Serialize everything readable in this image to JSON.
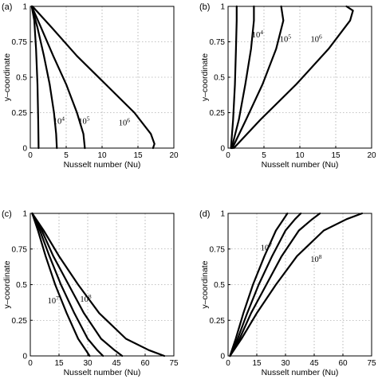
{
  "colors": {
    "curve": "#000000",
    "grid": "#888888",
    "background": "#ffffff"
  },
  "chart_data": [
    {
      "type": "line",
      "panel_label": "(a)",
      "xlabel": "Nusselt number (Nu)",
      "ylabel": "y–coordinate",
      "xlim": [
        0,
        20
      ],
      "ylim": [
        0,
        1
      ],
      "xticks": [
        "0",
        "5",
        "10",
        "15",
        "20"
      ],
      "yticks": [
        "0",
        "0.25",
        "0.5",
        "0.75",
        "1"
      ],
      "grid": true,
      "annotations": [
        {
          "base": "10",
          "exp": "4",
          "x": 3.2,
          "y": 0.17
        },
        {
          "base": "10",
          "exp": "5",
          "x": 6.7,
          "y": 0.17
        },
        {
          "base": "10",
          "exp": "6",
          "x": 12.3,
          "y": 0.16
        }
      ],
      "series": [
        {
          "x": [
            0.2,
            0.55,
            0.8,
            1.0,
            1.1,
            1.15
          ],
          "y": [
            1.0,
            0.9,
            0.7,
            0.45,
            0.2,
            0.0
          ]
        },
        {
          "x": [
            0.2,
            1.0,
            1.9,
            2.7,
            3.3,
            3.6,
            3.7
          ],
          "y": [
            1.0,
            0.85,
            0.65,
            0.45,
            0.25,
            0.1,
            0.0
          ]
        },
        {
          "x": [
            0.2,
            1.5,
            3.2,
            5.0,
            6.5,
            7.4,
            7.6
          ],
          "y": [
            1.0,
            0.85,
            0.65,
            0.45,
            0.25,
            0.1,
            0.0
          ]
        },
        {
          "x": [
            0.3,
            3.0,
            6.5,
            10.5,
            14.5,
            16.8,
            17.3,
            17.1
          ],
          "y": [
            1.0,
            0.85,
            0.65,
            0.45,
            0.25,
            0.1,
            0.03,
            0.0
          ]
        }
      ]
    },
    {
      "type": "line",
      "panel_label": "(b)",
      "xlabel": "Nusselt number (Nu)",
      "ylabel": "y–coordinate",
      "xlim": [
        0,
        20
      ],
      "ylim": [
        0,
        1
      ],
      "xticks": [
        "0",
        "5",
        "10",
        "15",
        "20"
      ],
      "yticks": [
        "0",
        "0.25",
        "0.5",
        "0.75",
        "1"
      ],
      "grid": true,
      "annotations": [
        {
          "base": "10",
          "exp": "4",
          "x": 3.3,
          "y": 0.78
        },
        {
          "base": "10",
          "exp": "5",
          "x": 7.2,
          "y": 0.75
        },
        {
          "base": "10",
          "exp": "6",
          "x": 11.5,
          "y": 0.75
        }
      ],
      "series": [
        {
          "x": [
            0.4,
            0.7,
            0.95,
            1.1,
            1.2,
            1.2
          ],
          "y": [
            0.0,
            0.2,
            0.45,
            0.7,
            0.9,
            1.0
          ]
        },
        {
          "x": [
            0.5,
            1.5,
            2.4,
            3.2,
            3.6,
            3.6
          ],
          "y": [
            0.0,
            0.2,
            0.45,
            0.7,
            0.9,
            1.0
          ]
        },
        {
          "x": [
            0.6,
            2.5,
            4.8,
            6.7,
            7.7,
            7.4
          ],
          "y": [
            0.0,
            0.2,
            0.45,
            0.7,
            0.9,
            1.0
          ]
        },
        {
          "x": [
            0.8,
            4.5,
            9.5,
            14.0,
            17.0,
            17.4,
            16.5
          ],
          "y": [
            0.0,
            0.2,
            0.45,
            0.7,
            0.9,
            0.97,
            1.0
          ]
        }
      ]
    },
    {
      "type": "line",
      "panel_label": "(c)",
      "xlabel": "Nusselt number (Nu)",
      "ylabel": "y–coordinate",
      "xlim": [
        0,
        75
      ],
      "ylim": [
        0,
        1
      ],
      "xticks": [
        "0",
        "15",
        "30",
        "45",
        "60",
        "75"
      ],
      "yticks": [
        "0",
        "0.25",
        "0.5",
        "0.75",
        "1"
      ],
      "grid": true,
      "annotations": [
        {
          "base": "10",
          "exp": "7",
          "x": 9,
          "y": 0.37
        },
        {
          "base": "10",
          "exp": "8",
          "x": 26,
          "y": 0.38
        }
      ],
      "series": [
        {
          "x": [
            1,
            4,
            8,
            13,
            19,
            25,
            29,
            31
          ],
          "y": [
            1.0,
            0.88,
            0.7,
            0.5,
            0.3,
            0.12,
            0.04,
            0.0
          ]
        },
        {
          "x": [
            1,
            5,
            10,
            16,
            23,
            30,
            35,
            38
          ],
          "y": [
            1.0,
            0.88,
            0.7,
            0.5,
            0.3,
            0.12,
            0.04,
            0.0
          ]
        },
        {
          "x": [
            1,
            6,
            12,
            20,
            28,
            37,
            44,
            48
          ],
          "y": [
            1.0,
            0.88,
            0.7,
            0.5,
            0.3,
            0.12,
            0.04,
            0.0
          ]
        },
        {
          "x": [
            1,
            7,
            15,
            25,
            36,
            50,
            62,
            70
          ],
          "y": [
            1.0,
            0.88,
            0.7,
            0.5,
            0.3,
            0.12,
            0.04,
            0.0
          ]
        }
      ]
    },
    {
      "type": "line",
      "panel_label": "(d)",
      "xlabel": "Nusselt number (Nu)",
      "ylabel": "y–coordinate",
      "xlim": [
        0,
        75
      ],
      "ylim": [
        0,
        1
      ],
      "xticks": [
        "0",
        "15",
        "30",
        "45",
        "60",
        "75"
      ],
      "yticks": [
        "0",
        "0.25",
        "0.5",
        "0.75",
        "1"
      ],
      "grid": true,
      "annotations": [
        {
          "base": "10",
          "exp": "7",
          "x": 17,
          "y": 0.74
        },
        {
          "base": "10",
          "exp": "8",
          "x": 43,
          "y": 0.66
        }
      ],
      "series": [
        {
          "x": [
            1,
            4,
            8,
            13,
            19,
            25,
            29,
            31
          ],
          "y": [
            0.0,
            0.12,
            0.3,
            0.5,
            0.7,
            0.88,
            0.96,
            1.0
          ]
        },
        {
          "x": [
            1,
            5,
            10,
            16,
            23,
            30,
            35,
            38
          ],
          "y": [
            0.0,
            0.12,
            0.3,
            0.5,
            0.7,
            0.88,
            0.96,
            1.0
          ]
        },
        {
          "x": [
            1,
            6,
            12,
            20,
            28,
            37,
            44,
            48
          ],
          "y": [
            0.0,
            0.12,
            0.3,
            0.5,
            0.7,
            0.88,
            0.96,
            1.0
          ]
        },
        {
          "x": [
            1,
            7,
            15,
            25,
            36,
            50,
            62,
            70
          ],
          "y": [
            0.0,
            0.12,
            0.3,
            0.5,
            0.7,
            0.88,
            0.96,
            1.0
          ]
        }
      ]
    }
  ]
}
